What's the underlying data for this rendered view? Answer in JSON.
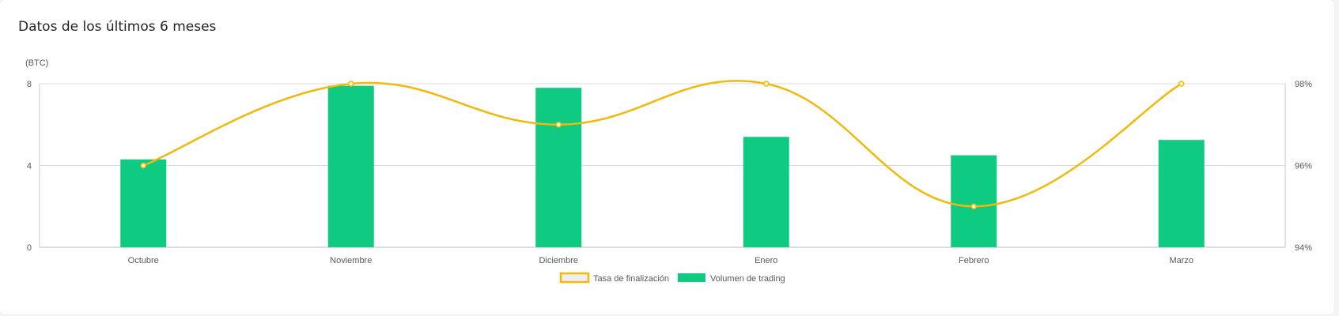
{
  "card": {
    "title": "Datos de los últimos 6 meses"
  },
  "chart_data": {
    "type": "bar",
    "categories": [
      "Octubre",
      "Noviembre",
      "Diciembre",
      "Enero",
      "Febrero",
      "Marzo"
    ],
    "y_left": {
      "unit_label": "(BTC)",
      "ticks": [
        "0",
        "4",
        "8"
      ],
      "range": [
        0,
        8
      ]
    },
    "y_right": {
      "ticks": [
        "94%",
        "96%",
        "98%"
      ],
      "range": [
        94,
        98
      ]
    },
    "grid": true,
    "legend": "bottom-center",
    "series": [
      {
        "name": "Volumen de trading",
        "kind": "bar",
        "axis": "left",
        "color": "#0ecb81",
        "values": [
          4.3,
          7.9,
          7.8,
          5.4,
          4.5,
          5.25
        ]
      },
      {
        "name": "Tasa de finalización",
        "kind": "line",
        "axis": "right",
        "color": "#f0b90b",
        "values": [
          96,
          98,
          97,
          98,
          95,
          98
        ]
      }
    ]
  }
}
